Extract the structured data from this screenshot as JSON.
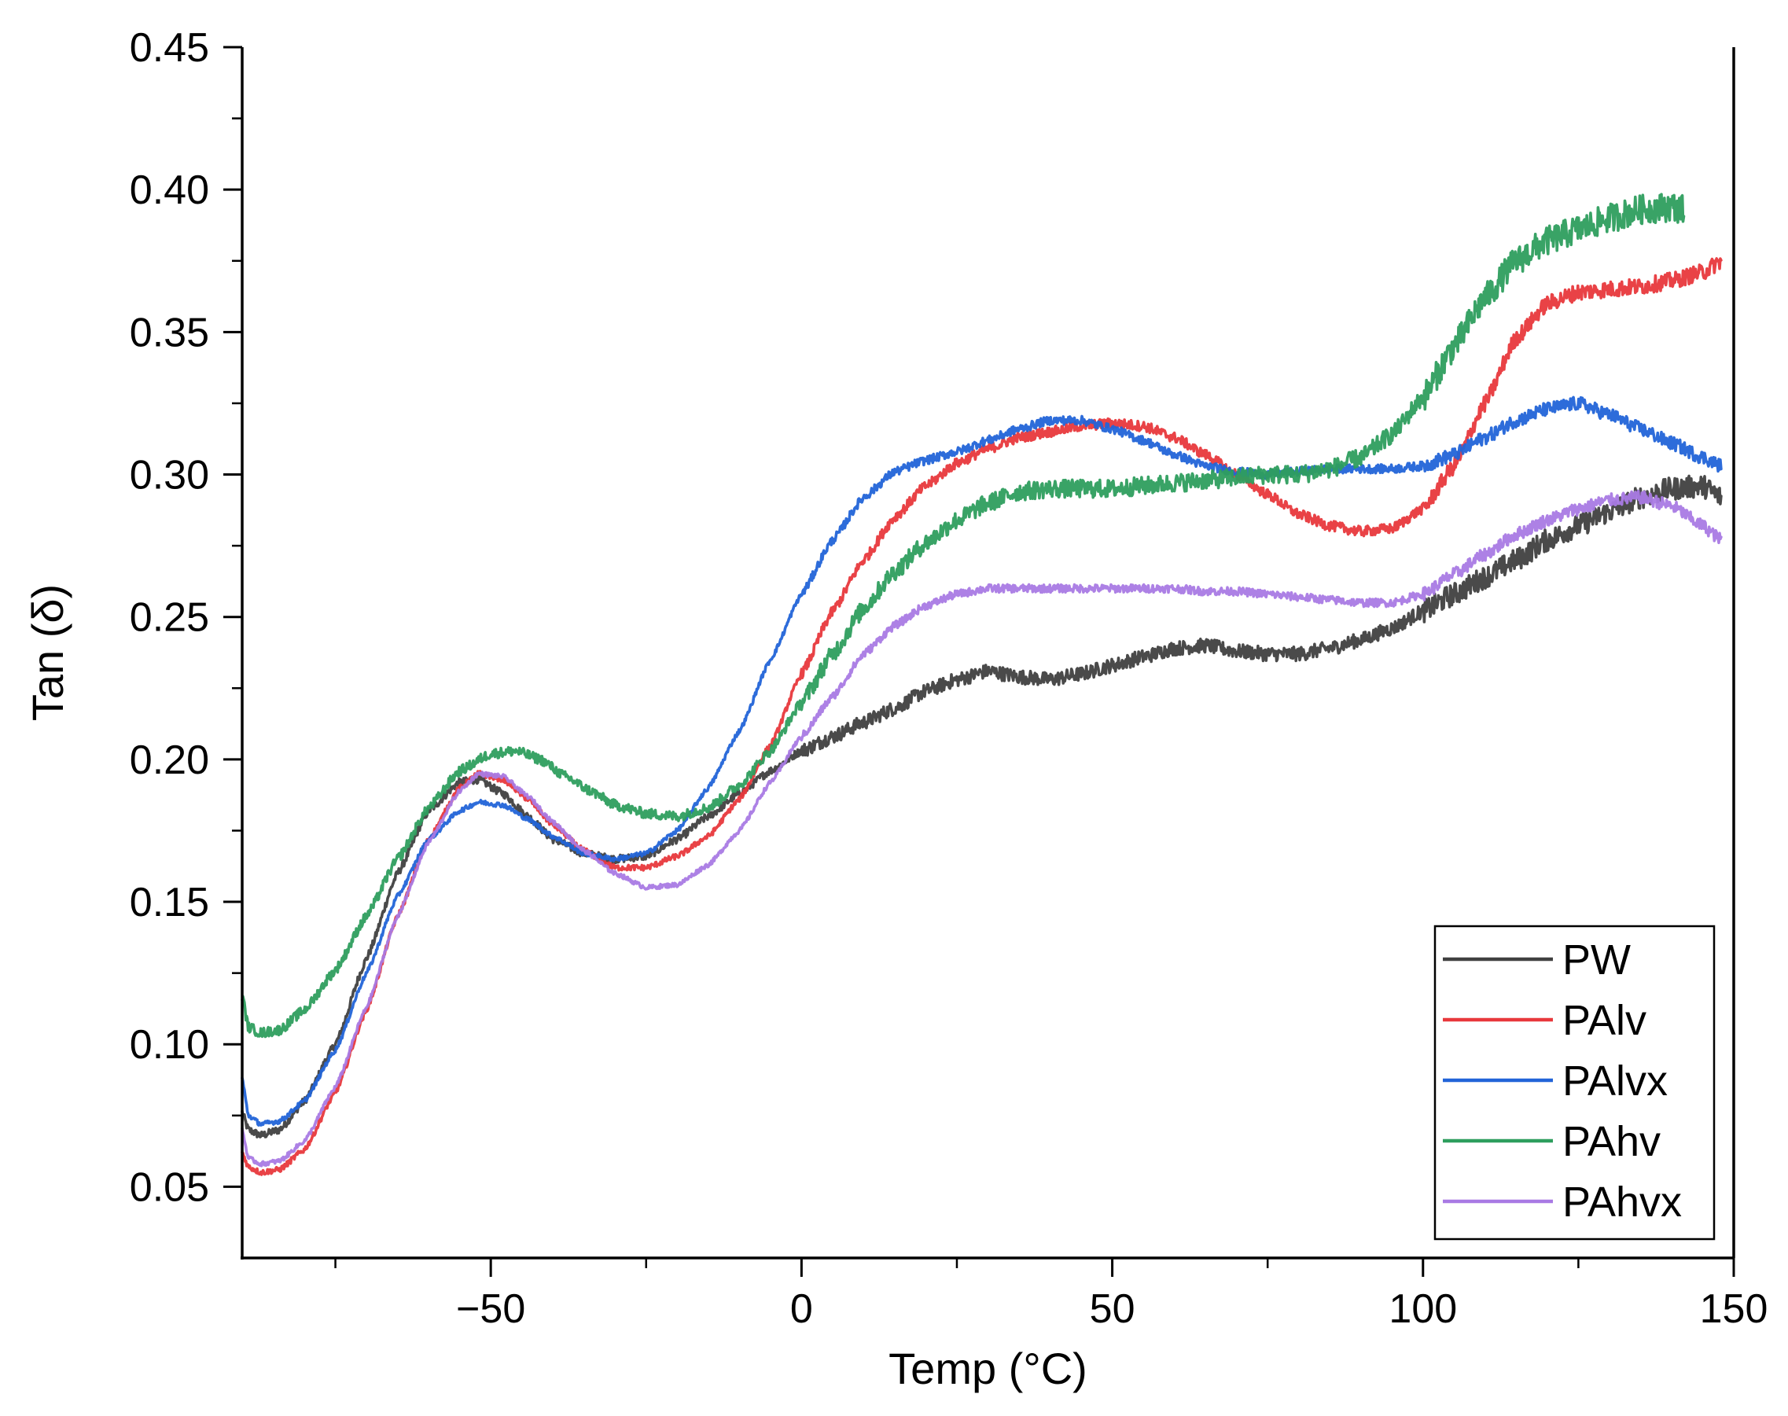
{
  "chart_data": {
    "type": "line",
    "title": "",
    "xlabel": "Temp (°C)",
    "ylabel": "Tan (δ)",
    "xlim": [
      -90,
      150
    ],
    "ylim": [
      0.025,
      0.45
    ],
    "x_ticks": [
      -50,
      0,
      50,
      100,
      150
    ],
    "x_tick_labels": [
      "−50",
      "0",
      "50",
      "100",
      "150"
    ],
    "y_ticks": [
      0.05,
      0.1,
      0.15,
      0.2,
      0.25,
      0.3,
      0.35,
      0.4,
      0.45
    ],
    "y_tick_labels": [
      "0.05",
      "0.10",
      "0.15",
      "0.20",
      "0.25",
      "0.30",
      "0.35",
      "0.40",
      "0.45"
    ],
    "legend_position": "bottom-right",
    "series": [
      {
        "name": "PW",
        "color": "#404040",
        "noise": 0.0025,
        "points": [
          [
            -90,
            0.076
          ],
          [
            -89,
            0.07
          ],
          [
            -87,
            0.068
          ],
          [
            -84,
            0.07
          ],
          [
            -80,
            0.08
          ],
          [
            -75,
            0.1
          ],
          [
            -70,
            0.13
          ],
          [
            -65,
            0.16
          ],
          [
            -60,
            0.182
          ],
          [
            -55,
            0.192
          ],
          [
            -52,
            0.193
          ],
          [
            -48,
            0.188
          ],
          [
            -44,
            0.18
          ],
          [
            -40,
            0.172
          ],
          [
            -35,
            0.167
          ],
          [
            -30,
            0.165
          ],
          [
            -25,
            0.166
          ],
          [
            -20,
            0.172
          ],
          [
            -15,
            0.18
          ],
          [
            -10,
            0.188
          ],
          [
            -5,
            0.196
          ],
          [
            0,
            0.203
          ],
          [
            5,
            0.208
          ],
          [
            10,
            0.213
          ],
          [
            15,
            0.218
          ],
          [
            20,
            0.224
          ],
          [
            25,
            0.228
          ],
          [
            30,
            0.231
          ],
          [
            35,
            0.229
          ],
          [
            40,
            0.228
          ],
          [
            45,
            0.23
          ],
          [
            50,
            0.233
          ],
          [
            55,
            0.236
          ],
          [
            60,
            0.239
          ],
          [
            65,
            0.24
          ],
          [
            70,
            0.238
          ],
          [
            75,
            0.237
          ],
          [
            80,
            0.237
          ],
          [
            85,
            0.239
          ],
          [
            90,
            0.242
          ],
          [
            95,
            0.246
          ],
          [
            100,
            0.252
          ],
          [
            105,
            0.258
          ],
          [
            110,
            0.264
          ],
          [
            115,
            0.27
          ],
          [
            120,
            0.277
          ],
          [
            125,
            0.282
          ],
          [
            130,
            0.287
          ],
          [
            135,
            0.292
          ],
          [
            140,
            0.295
          ],
          [
            145,
            0.296
          ],
          [
            148,
            0.292
          ]
        ]
      },
      {
        "name": "PAlv",
        "color": "#e8383c",
        "noise": 0.0018,
        "points": [
          [
            -90,
            0.062
          ],
          [
            -89,
            0.057
          ],
          [
            -87,
            0.055
          ],
          [
            -84,
            0.056
          ],
          [
            -80,
            0.063
          ],
          [
            -75,
            0.083
          ],
          [
            -70,
            0.112
          ],
          [
            -65,
            0.145
          ],
          [
            -60,
            0.172
          ],
          [
            -55,
            0.19
          ],
          [
            -52,
            0.195
          ],
          [
            -48,
            0.193
          ],
          [
            -44,
            0.186
          ],
          [
            -40,
            0.177
          ],
          [
            -35,
            0.168
          ],
          [
            -30,
            0.162
          ],
          [
            -25,
            0.162
          ],
          [
            -20,
            0.166
          ],
          [
            -15,
            0.173
          ],
          [
            -10,
            0.186
          ],
          [
            -5,
            0.205
          ],
          [
            0,
            0.23
          ],
          [
            5,
            0.252
          ],
          [
            10,
            0.27
          ],
          [
            15,
            0.285
          ],
          [
            20,
            0.296
          ],
          [
            25,
            0.304
          ],
          [
            30,
            0.309
          ],
          [
            35,
            0.313
          ],
          [
            40,
            0.315
          ],
          [
            45,
            0.317
          ],
          [
            50,
            0.318
          ],
          [
            55,
            0.317
          ],
          [
            60,
            0.313
          ],
          [
            65,
            0.307
          ],
          [
            70,
            0.3
          ],
          [
            75,
            0.293
          ],
          [
            80,
            0.286
          ],
          [
            85,
            0.282
          ],
          [
            90,
            0.28
          ],
          [
            95,
            0.281
          ],
          [
            100,
            0.288
          ],
          [
            105,
            0.303
          ],
          [
            110,
            0.325
          ],
          [
            115,
            0.348
          ],
          [
            120,
            0.36
          ],
          [
            125,
            0.364
          ],
          [
            130,
            0.365
          ],
          [
            135,
            0.366
          ],
          [
            140,
            0.368
          ],
          [
            145,
            0.371
          ],
          [
            148,
            0.375
          ]
        ]
      },
      {
        "name": "PAlvx",
        "color": "#2264d8",
        "noise": 0.0015,
        "points": [
          [
            -90,
            0.088
          ],
          [
            -89,
            0.075
          ],
          [
            -87,
            0.072
          ],
          [
            -84,
            0.073
          ],
          [
            -80,
            0.08
          ],
          [
            -75,
            0.098
          ],
          [
            -70,
            0.125
          ],
          [
            -65,
            0.152
          ],
          [
            -60,
            0.172
          ],
          [
            -55,
            0.182
          ],
          [
            -52,
            0.185
          ],
          [
            -48,
            0.184
          ],
          [
            -44,
            0.179
          ],
          [
            -40,
            0.173
          ],
          [
            -35,
            0.167
          ],
          [
            -30,
            0.165
          ],
          [
            -25,
            0.167
          ],
          [
            -20,
            0.175
          ],
          [
            -15,
            0.19
          ],
          [
            -10,
            0.21
          ],
          [
            -5,
            0.235
          ],
          [
            0,
            0.258
          ],
          [
            5,
            0.277
          ],
          [
            10,
            0.292
          ],
          [
            15,
            0.301
          ],
          [
            20,
            0.305
          ],
          [
            25,
            0.308
          ],
          [
            30,
            0.312
          ],
          [
            35,
            0.316
          ],
          [
            40,
            0.319
          ],
          [
            45,
            0.319
          ],
          [
            50,
            0.316
          ],
          [
            55,
            0.312
          ],
          [
            60,
            0.307
          ],
          [
            65,
            0.303
          ],
          [
            70,
            0.301
          ],
          [
            75,
            0.3
          ],
          [
            80,
            0.301
          ],
          [
            85,
            0.302
          ],
          [
            90,
            0.302
          ],
          [
            95,
            0.302
          ],
          [
            100,
            0.303
          ],
          [
            105,
            0.307
          ],
          [
            110,
            0.313
          ],
          [
            115,
            0.319
          ],
          [
            120,
            0.323
          ],
          [
            125,
            0.325
          ],
          [
            130,
            0.321
          ],
          [
            135,
            0.316
          ],
          [
            140,
            0.311
          ],
          [
            145,
            0.306
          ],
          [
            148,
            0.303
          ]
        ]
      },
      {
        "name": "PAhv",
        "color": "#2e9e5e",
        "noise": 0.0032,
        "points": [
          [
            -90,
            0.117
          ],
          [
            -89,
            0.106
          ],
          [
            -87,
            0.104
          ],
          [
            -84,
            0.105
          ],
          [
            -80,
            0.112
          ],
          [
            -75,
            0.126
          ],
          [
            -70,
            0.145
          ],
          [
            -65,
            0.165
          ],
          [
            -60,
            0.183
          ],
          [
            -55,
            0.196
          ],
          [
            -50,
            0.202
          ],
          [
            -46,
            0.203
          ],
          [
            -42,
            0.2
          ],
          [
            -38,
            0.194
          ],
          [
            -34,
            0.189
          ],
          [
            -30,
            0.184
          ],
          [
            -25,
            0.181
          ],
          [
            -20,
            0.18
          ],
          [
            -15,
            0.183
          ],
          [
            -10,
            0.191
          ],
          [
            -5,
            0.203
          ],
          [
            0,
            0.22
          ],
          [
            5,
            0.237
          ],
          [
            10,
            0.253
          ],
          [
            15,
            0.266
          ],
          [
            20,
            0.276
          ],
          [
            25,
            0.284
          ],
          [
            30,
            0.29
          ],
          [
            35,
            0.294
          ],
          [
            40,
            0.295
          ],
          [
            45,
            0.295
          ],
          [
            50,
            0.295
          ],
          [
            55,
            0.296
          ],
          [
            60,
            0.297
          ],
          [
            65,
            0.298
          ],
          [
            70,
            0.299
          ],
          [
            75,
            0.3
          ],
          [
            80,
            0.3
          ],
          [
            85,
            0.302
          ],
          [
            90,
            0.306
          ],
          [
            95,
            0.314
          ],
          [
            100,
            0.327
          ],
          [
            105,
            0.345
          ],
          [
            110,
            0.362
          ],
          [
            115,
            0.375
          ],
          [
            120,
            0.382
          ],
          [
            125,
            0.386
          ],
          [
            130,
            0.39
          ],
          [
            135,
            0.393
          ],
          [
            140,
            0.394
          ],
          [
            142,
            0.393
          ]
        ]
      },
      {
        "name": "PAhvx",
        "color": "#a97ae4",
        "noise": 0.0014,
        "points": [
          [
            -90,
            0.07
          ],
          [
            -89,
            0.06
          ],
          [
            -87,
            0.058
          ],
          [
            -84,
            0.059
          ],
          [
            -80,
            0.066
          ],
          [
            -75,
            0.085
          ],
          [
            -70,
            0.113
          ],
          [
            -65,
            0.145
          ],
          [
            -60,
            0.171
          ],
          [
            -55,
            0.189
          ],
          [
            -52,
            0.195
          ],
          [
            -48,
            0.194
          ],
          [
            -44,
            0.187
          ],
          [
            -40,
            0.178
          ],
          [
            -35,
            0.168
          ],
          [
            -30,
            0.16
          ],
          [
            -25,
            0.155
          ],
          [
            -20,
            0.156
          ],
          [
            -15,
            0.163
          ],
          [
            -10,
            0.175
          ],
          [
            -5,
            0.192
          ],
          [
            0,
            0.208
          ],
          [
            5,
            0.222
          ],
          [
            10,
            0.237
          ],
          [
            15,
            0.247
          ],
          [
            20,
            0.254
          ],
          [
            25,
            0.258
          ],
          [
            30,
            0.26
          ],
          [
            35,
            0.26
          ],
          [
            40,
            0.26
          ],
          [
            45,
            0.26
          ],
          [
            50,
            0.26
          ],
          [
            55,
            0.26
          ],
          [
            60,
            0.26
          ],
          [
            65,
            0.259
          ],
          [
            70,
            0.259
          ],
          [
            75,
            0.258
          ],
          [
            80,
            0.257
          ],
          [
            85,
            0.256
          ],
          [
            90,
            0.255
          ],
          [
            95,
            0.255
          ],
          [
            100,
            0.258
          ],
          [
            105,
            0.265
          ],
          [
            110,
            0.272
          ],
          [
            115,
            0.279
          ],
          [
            120,
            0.284
          ],
          [
            125,
            0.288
          ],
          [
            130,
            0.291
          ],
          [
            135,
            0.292
          ],
          [
            140,
            0.289
          ],
          [
            145,
            0.282
          ],
          [
            148,
            0.277
          ]
        ]
      }
    ]
  }
}
